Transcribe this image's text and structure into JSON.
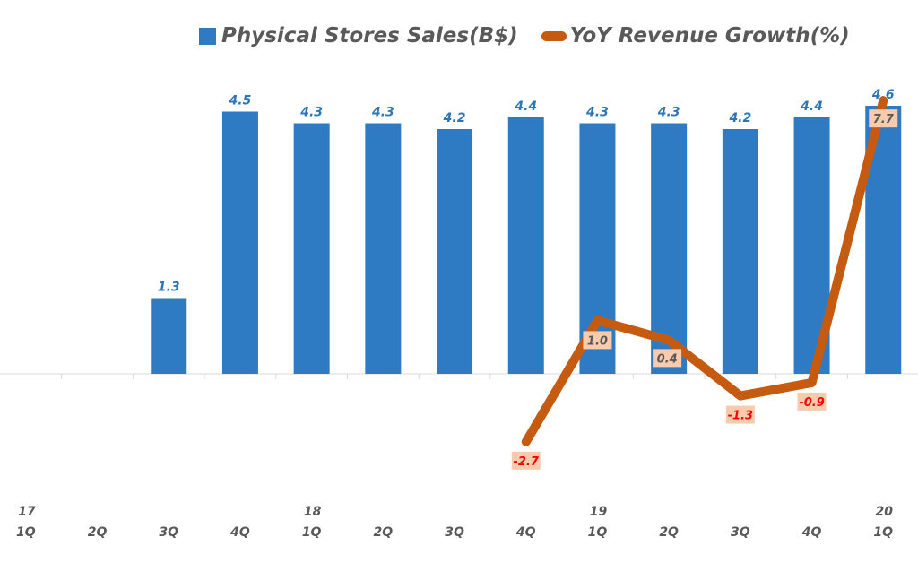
{
  "chart_data": {
    "type": "bar",
    "title": "",
    "xlabel": "",
    "ylabel": "",
    "categories": [
      "1Q",
      "2Q",
      "3Q",
      "4Q",
      "1Q",
      "2Q",
      "3Q",
      "4Q",
      "1Q",
      "2Q",
      "3Q",
      "4Q",
      "1Q"
    ],
    "year_labels": [
      "17",
      "",
      "",
      "",
      "18",
      "",
      "",
      "",
      "19",
      "",
      "",
      "",
      "20"
    ],
    "series": [
      {
        "name": "Physical Stores Sales(B$)",
        "type": "bar",
        "axis": "primary",
        "color": "#2e7bc4",
        "values": [
          null,
          null,
          1.3,
          4.5,
          4.3,
          4.3,
          4.2,
          4.4,
          4.3,
          4.3,
          4.2,
          4.4,
          4.6
        ],
        "labels": [
          "",
          "",
          "1.3",
          "4.5",
          "4.3",
          "4.3",
          "4.2",
          "4.4",
          "4.3",
          "4.3",
          "4.2",
          "4.4",
          "4.6"
        ]
      },
      {
        "name": "YoY Revenue Growth(%)",
        "type": "line",
        "axis": "secondary",
        "color": "#c55a11",
        "values": [
          null,
          null,
          null,
          null,
          null,
          null,
          null,
          -2.7,
          1.0,
          0.4,
          -1.3,
          -0.9,
          7.7
        ],
        "labels": [
          "",
          "",
          "",
          "",
          "",
          "",
          "",
          "-2.7",
          "1.0",
          "0.4",
          "-1.3",
          "-0.9",
          "7.7"
        ]
      }
    ],
    "ylim_primary": [
      0,
      6
    ],
    "ylim_secondary": [
      -4,
      8
    ],
    "legend_position": "top",
    "grid": false,
    "label_colors": {
      "positive": "#595959",
      "negative": "#ff0000",
      "box": "#f8cbad"
    }
  }
}
